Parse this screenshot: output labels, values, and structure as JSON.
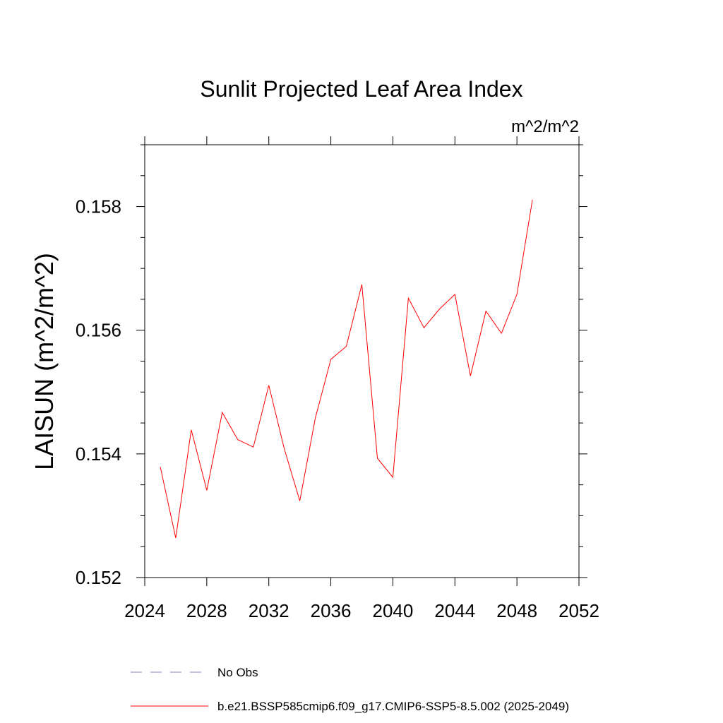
{
  "chart_data": {
    "type": "line",
    "title": "Sunlit Projected Leaf Area Index",
    "units_label": "m^2/m^2",
    "ylabel": "LAISUN  (m^2/m^2)",
    "xlabel": "",
    "xlim": [
      2024,
      2052
    ],
    "ylim": [
      0.152,
      0.159
    ],
    "xticks": [
      2024,
      2028,
      2032,
      2036,
      2040,
      2044,
      2048,
      2052
    ],
    "xtick_labels": [
      "2024",
      "2028",
      "2032",
      "2036",
      "2040",
      "2044",
      "2048",
      "2052"
    ],
    "yticks": [
      0.152,
      0.154,
      0.156,
      0.158
    ],
    "ytick_labels": [
      "0.152",
      "0.154",
      "0.156",
      "0.158"
    ],
    "grid": false,
    "legend_position": "bottom",
    "series": [
      {
        "name": "b.e21.BSSP585cmip6.f09_g17.CMIP6-SSP5-8.5.002 (2025-2049)",
        "color": "#ff0000",
        "style": "solid",
        "x": [
          2025,
          2026,
          2027,
          2028,
          2029,
          2030,
          2031,
          2032,
          2033,
          2034,
          2035,
          2036,
          2037,
          2038,
          2039,
          2040,
          2041,
          2042,
          2043,
          2044,
          2045,
          2046,
          2047,
          2048,
          2049
        ],
        "values": [
          0.15379,
          0.15264,
          0.15439,
          0.15341,
          0.15467,
          0.15423,
          0.15411,
          0.15511,
          0.15408,
          0.15324,
          0.15458,
          0.15553,
          0.15574,
          0.15674,
          0.15393,
          0.15362,
          0.15652,
          0.15604,
          0.15634,
          0.15658,
          0.15526,
          0.15631,
          0.15595,
          0.15658,
          0.15811
        ]
      }
    ],
    "legend": [
      {
        "label": "No Obs",
        "color": "#8080c0",
        "style": "dashed"
      },
      {
        "label": "b.e21.BSSP585cmip6.f09_g17.CMIP6-SSP5-8.5.002 (2025-2049)",
        "color": "#ff0000",
        "style": "solid"
      }
    ]
  }
}
